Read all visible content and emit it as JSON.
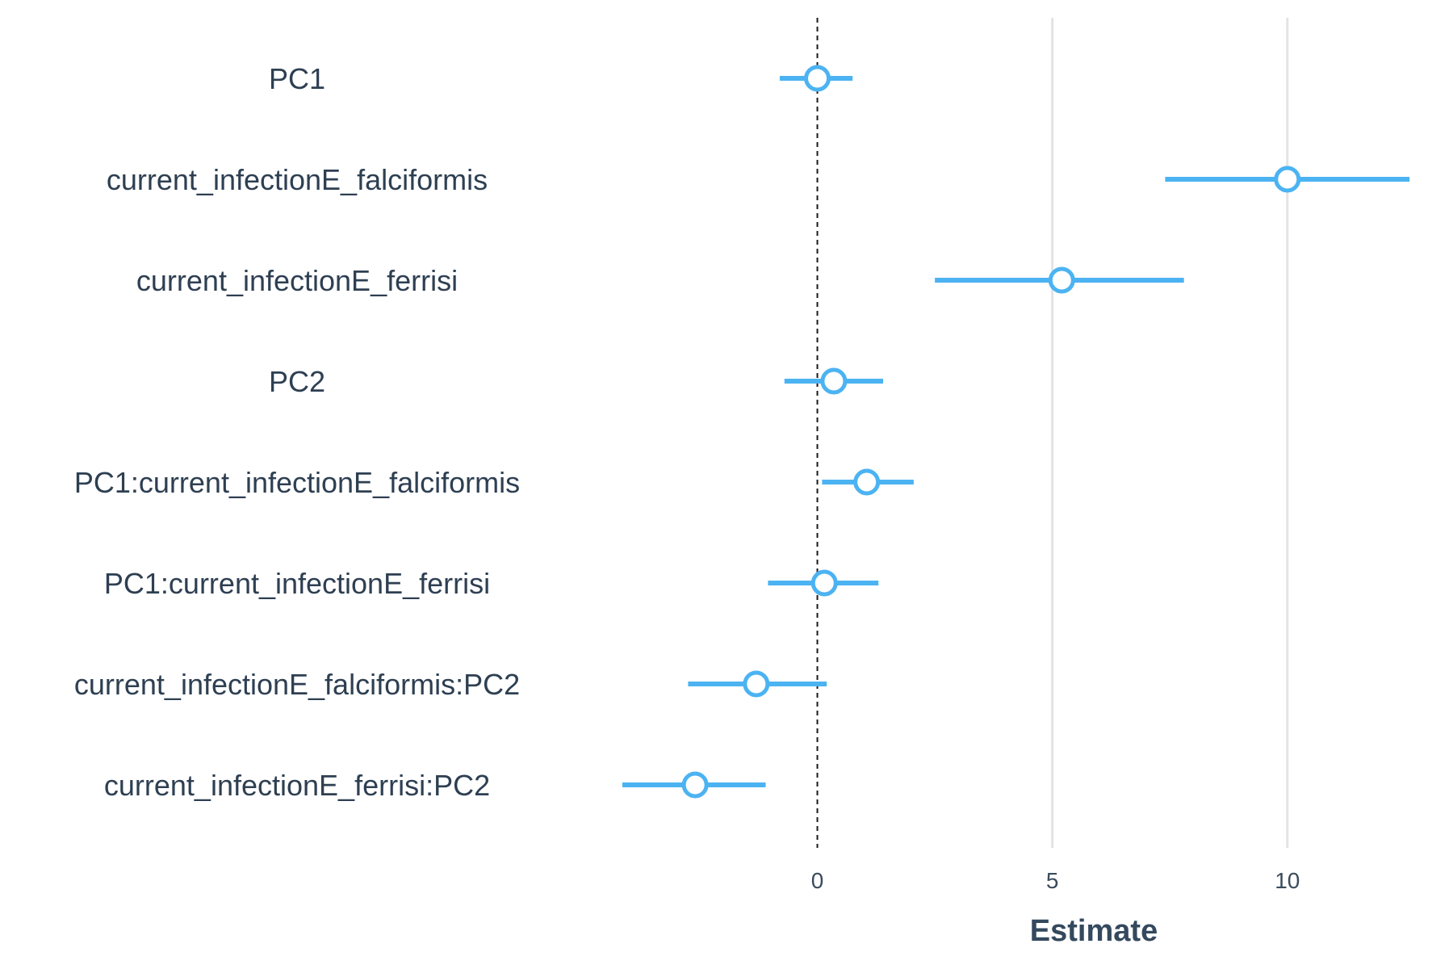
{
  "chart_data": {
    "type": "scatter",
    "subtype": "coefficient-interval-plot",
    "title": "",
    "xlabel": "Estimate",
    "ylabel": "",
    "xlim": [
      -4.2,
      12.7
    ],
    "x_ticks": [
      0,
      5,
      10
    ],
    "x_tick_labels": [
      "0",
      "5",
      "10"
    ],
    "reference_line": 0,
    "grid": "vertical major gridlines",
    "legend": "none",
    "point_style": "open circle",
    "color": "#4cb3f2",
    "terms": [
      {
        "term": "PC1",
        "estimate": 0.0,
        "low": -0.8,
        "high": 0.75
      },
      {
        "term": "current_infectionE_falciformis",
        "estimate": 10.0,
        "low": 7.4,
        "high": 12.6
      },
      {
        "term": "current_infectionE_ferrisi",
        "estimate": 5.2,
        "low": 2.5,
        "high": 7.8
      },
      {
        "term": "PC2",
        "estimate": 0.35,
        "low": -0.7,
        "high": 1.4
      },
      {
        "term": "PC1:current_infectionE_falciformis",
        "estimate": 1.05,
        "low": 0.1,
        "high": 2.05
      },
      {
        "term": "PC1:current_infectionE_ferrisi",
        "estimate": 0.15,
        "low": -1.05,
        "high": 1.3
      },
      {
        "term": "current_infectionE_falciformis:PC2",
        "estimate": -1.3,
        "low": -2.75,
        "high": 0.2
      },
      {
        "term": "current_infectionE_ferrisi:PC2",
        "estimate": -2.6,
        "low": -4.15,
        "high": -1.1
      }
    ]
  }
}
